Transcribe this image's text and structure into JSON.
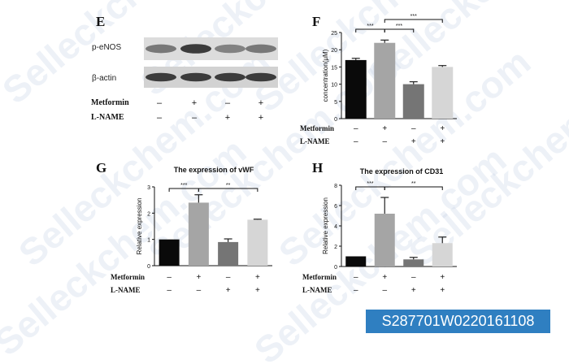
{
  "watermark": {
    "text": "Selleckchem.com"
  },
  "catalog_id": "S287701W0220161108",
  "treatment_rows": {
    "labels": [
      "Metformin",
      "L-NAME"
    ],
    "metformin": [
      "–",
      "+",
      "–",
      "+"
    ],
    "lname": [
      "–",
      "–",
      "+",
      "+"
    ]
  },
  "colors": {
    "bar_fills": [
      "#0a0a0a",
      "#a5a5a5",
      "#757575",
      "#d6d6d6"
    ],
    "badge": "#2f7fc1"
  },
  "panels": {
    "E": {
      "letter": "E",
      "blot_labels": [
        "p-eNOS",
        "β-actin"
      ],
      "band_intensity": {
        "p-eNOS": [
          0.55,
          0.85,
          0.5,
          0.55
        ],
        "β-actin": [
          0.85,
          0.85,
          0.85,
          0.85
        ]
      }
    },
    "F": {
      "letter": "F"
    },
    "G": {
      "letter": "G"
    },
    "H": {
      "letter": "H"
    }
  },
  "chart_data": [
    {
      "panel": "F",
      "type": "bar",
      "title": "",
      "ylabel": "concentration(μM)",
      "ylim": [
        0,
        25
      ],
      "yticks": [
        0,
        5,
        10,
        15,
        20,
        25
      ],
      "values": [
        17,
        22,
        10,
        15
      ],
      "errors": [
        0.5,
        0.8,
        0.7,
        0.4
      ],
      "significance": [
        {
          "from": 1,
          "to": 3,
          "label": "***",
          "level": 2
        },
        {
          "from": 0,
          "to": 1,
          "label": "***",
          "level": 1
        },
        {
          "from": 1,
          "to": 2,
          "label": "***",
          "level": 1
        }
      ]
    },
    {
      "panel": "G",
      "type": "bar",
      "title": "The expression of vWF",
      "ylabel": "Relative expression",
      "ylim": [
        0,
        3
      ],
      "yticks": [
        0,
        1,
        2,
        3
      ],
      "values": [
        1.0,
        2.4,
        0.9,
        1.75
      ],
      "errors": [
        0,
        0.3,
        0.12,
        0.02
      ],
      "significance": [
        {
          "from": 0,
          "to": 1,
          "label": "***",
          "level": 1
        },
        {
          "from": 1,
          "to": 3,
          "label": "**",
          "level": 1
        }
      ]
    },
    {
      "panel": "H",
      "type": "bar",
      "title": "The expression of CD31",
      "ylabel": "Relative expression",
      "ylim": [
        0,
        8
      ],
      "yticks": [
        0,
        2,
        4,
        6,
        8
      ],
      "values": [
        1.0,
        5.2,
        0.7,
        2.3
      ],
      "errors": [
        0,
        1.6,
        0.2,
        0.6
      ],
      "significance": [
        {
          "from": 0,
          "to": 1,
          "label": "***",
          "level": 1
        },
        {
          "from": 1,
          "to": 3,
          "label": "**",
          "level": 1
        }
      ]
    }
  ]
}
